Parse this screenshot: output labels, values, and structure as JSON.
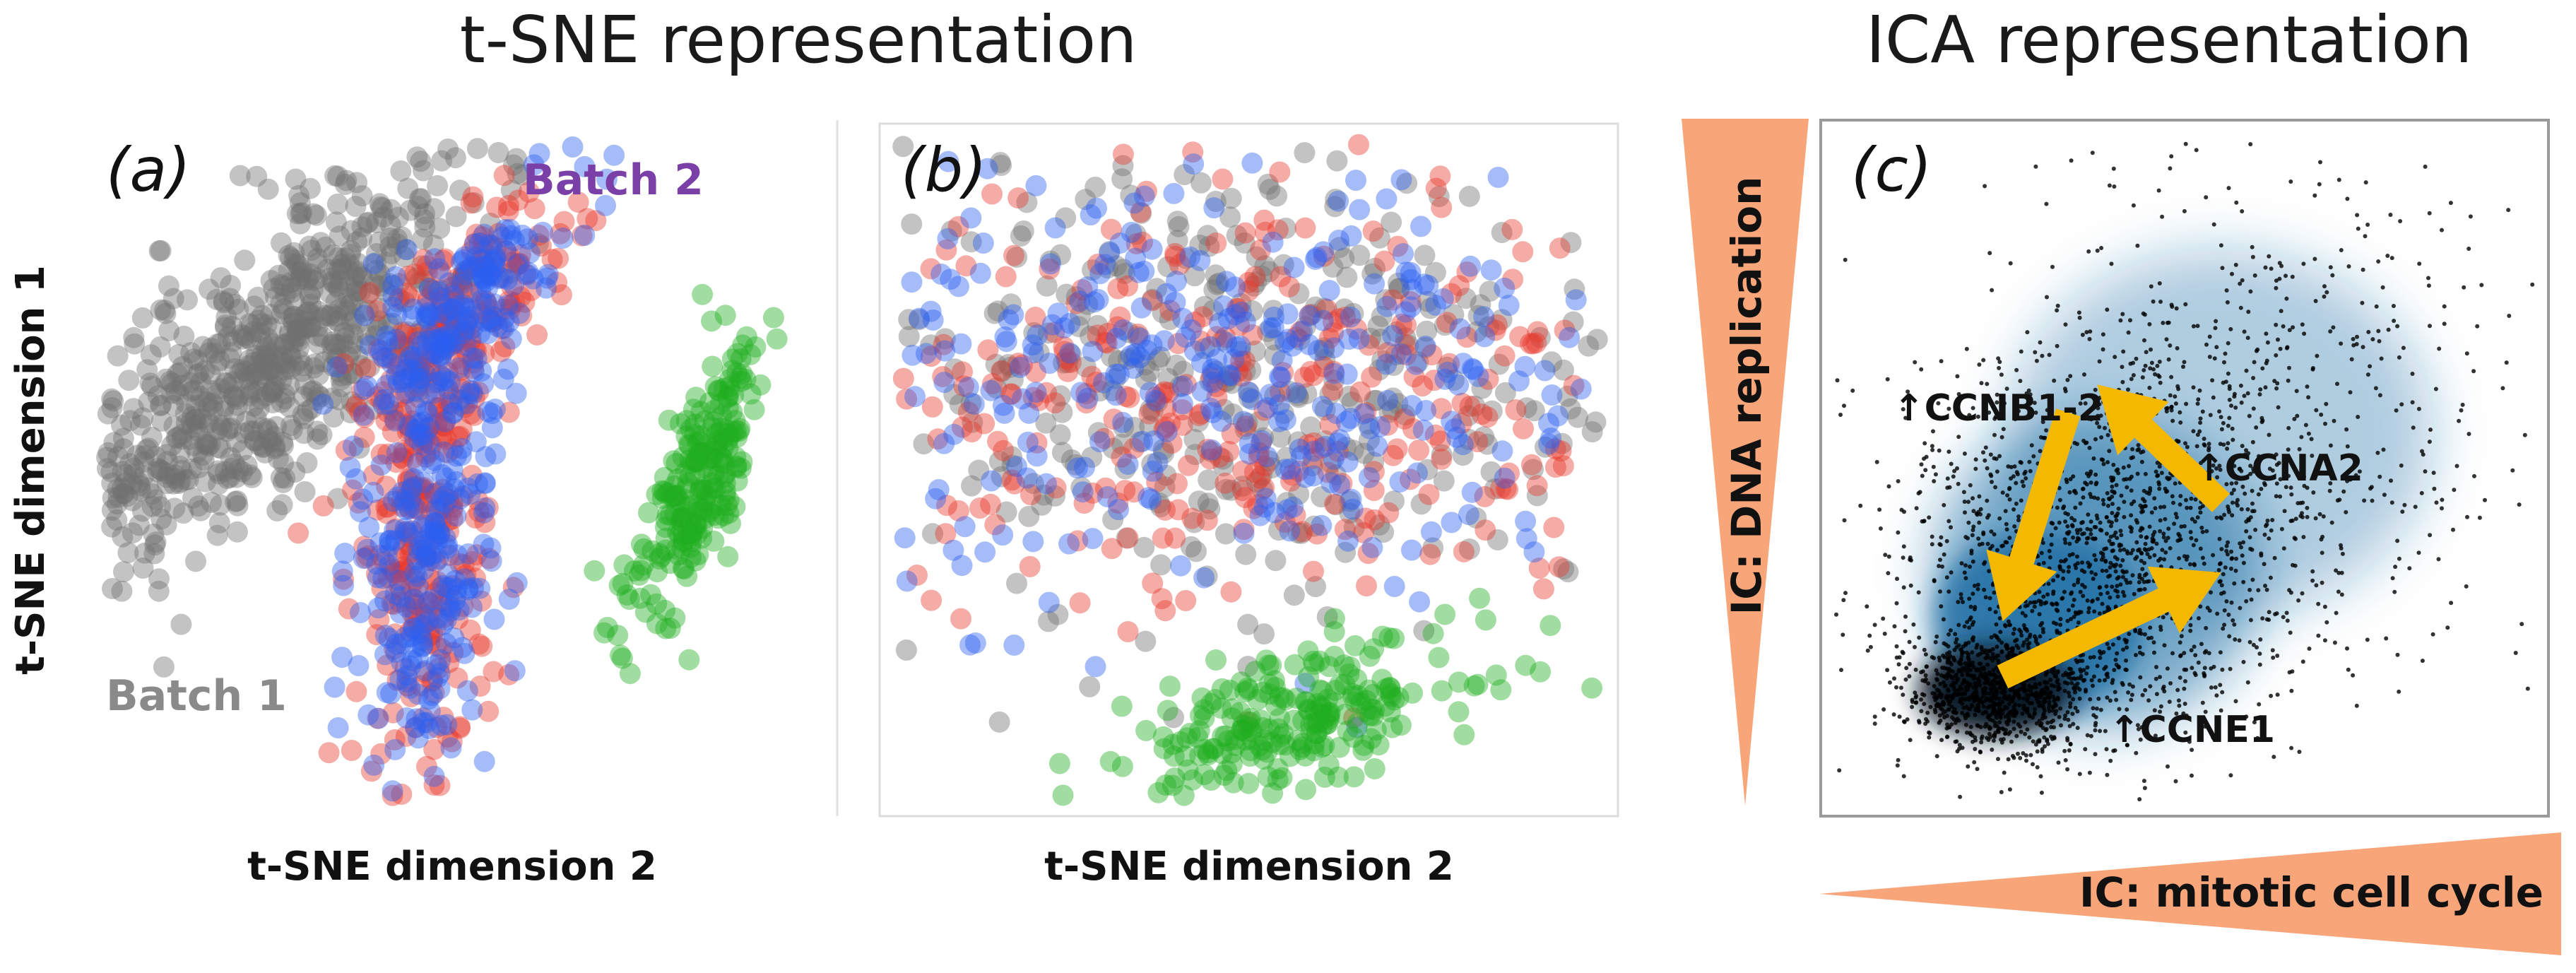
{
  "titles": {
    "tsne": "t-SNE representation",
    "ica": "ICA representation"
  },
  "chart_data": [
    {
      "panel": "(a)",
      "type": "scatter",
      "title": "",
      "xlabel": "t-SNE dimension 2",
      "ylabel": "t-SNE dimension 1",
      "grid": false,
      "annotations": [
        {
          "text": "Batch 2",
          "color": "#7b3fa8"
        },
        {
          "text": "Batch 1",
          "color": "#8a8a8a"
        }
      ],
      "series": [
        {
          "color": "#707070",
          "clusters": [
            {
              "cx": 0.22,
              "cy": 0.64,
              "sx": 0.075,
              "sy": 0.2,
              "tilt": -0.75,
              "n": 760
            }
          ]
        },
        {
          "color": "#e8382b",
          "clusters": [
            {
              "cx": 0.5,
              "cy": 0.72,
              "sx": 0.042,
              "sy": 0.11,
              "tilt": -0.6,
              "n": 170
            },
            {
              "cx": 0.45,
              "cy": 0.38,
              "sx": 0.045,
              "sy": 0.17,
              "tilt": 0.0,
              "n": 260
            }
          ]
        },
        {
          "color": "#2c5ff0",
          "clusters": [
            {
              "cx": 0.5,
              "cy": 0.72,
              "sx": 0.042,
              "sy": 0.11,
              "tilt": -0.6,
              "n": 170
            },
            {
              "cx": 0.45,
              "cy": 0.38,
              "sx": 0.045,
              "sy": 0.17,
              "tilt": 0.0,
              "n": 260
            }
          ]
        },
        {
          "color": "#1fad1f",
          "clusters": [
            {
              "cx": 0.83,
              "cy": 0.49,
              "sx": 0.027,
              "sy": 0.12,
              "tilt": -0.35,
              "n": 240
            }
          ]
        }
      ]
    },
    {
      "panel": "(b)",
      "type": "scatter",
      "title": "",
      "xlabel": "t-SNE dimension 2",
      "ylabel": "",
      "grid": false,
      "series": [
        {
          "color": "#707070",
          "clusters": [
            {
              "cx": 0.45,
              "cy": 0.64,
              "sx": 0.28,
              "sy": 0.17,
              "tilt": 0.0,
              "n": 420
            }
          ]
        },
        {
          "color": "#e8382b",
          "clusters": [
            {
              "cx": 0.47,
              "cy": 0.62,
              "sx": 0.27,
              "sy": 0.16,
              "tilt": 0.0,
              "n": 340
            }
          ]
        },
        {
          "color": "#2c5ff0",
          "clusters": [
            {
              "cx": 0.48,
              "cy": 0.62,
              "sx": 0.27,
              "sy": 0.16,
              "tilt": 0.0,
              "n": 340
            }
          ]
        },
        {
          "color": "#1fad1f",
          "clusters": [
            {
              "cx": 0.55,
              "cy": 0.13,
              "sx": 0.13,
              "sy": 0.045,
              "tilt": 0.3,
              "n": 240
            }
          ]
        }
      ]
    },
    {
      "panel": "(c)",
      "type": "scatter",
      "title": "",
      "xlabel": "IC: mitotic cell cycle",
      "ylabel": "IC: DNA replication",
      "grid": false,
      "density_color": "#1e6fa5",
      "point_color": "#000000",
      "annotations": [
        {
          "text": "↑CCNB1-2"
        },
        {
          "text": "↑CCNA2"
        },
        {
          "text": "↑CCNE1"
        }
      ],
      "arrows_color": "#f5b800",
      "arrows": [
        {
          "from": [
            0.25,
            0.2
          ],
          "to": [
            0.55,
            0.35
          ]
        },
        {
          "from": [
            0.55,
            0.45
          ],
          "to": [
            0.38,
            0.62
          ]
        },
        {
          "from": [
            0.34,
            0.58
          ],
          "to": [
            0.25,
            0.28
          ]
        }
      ],
      "series": [
        {
          "color": "#000000",
          "clusters": [
            {
              "cx": 0.24,
              "cy": 0.18,
              "sx": 0.06,
              "sy": 0.04,
              "tilt": 0.0,
              "n": 900
            },
            {
              "cx": 0.38,
              "cy": 0.35,
              "sx": 0.14,
              "sy": 0.13,
              "tilt": 0.4,
              "n": 1400
            },
            {
              "cx": 0.55,
              "cy": 0.55,
              "sx": 0.2,
              "sy": 0.17,
              "tilt": 0.3,
              "n": 700
            }
          ]
        }
      ]
    }
  ]
}
